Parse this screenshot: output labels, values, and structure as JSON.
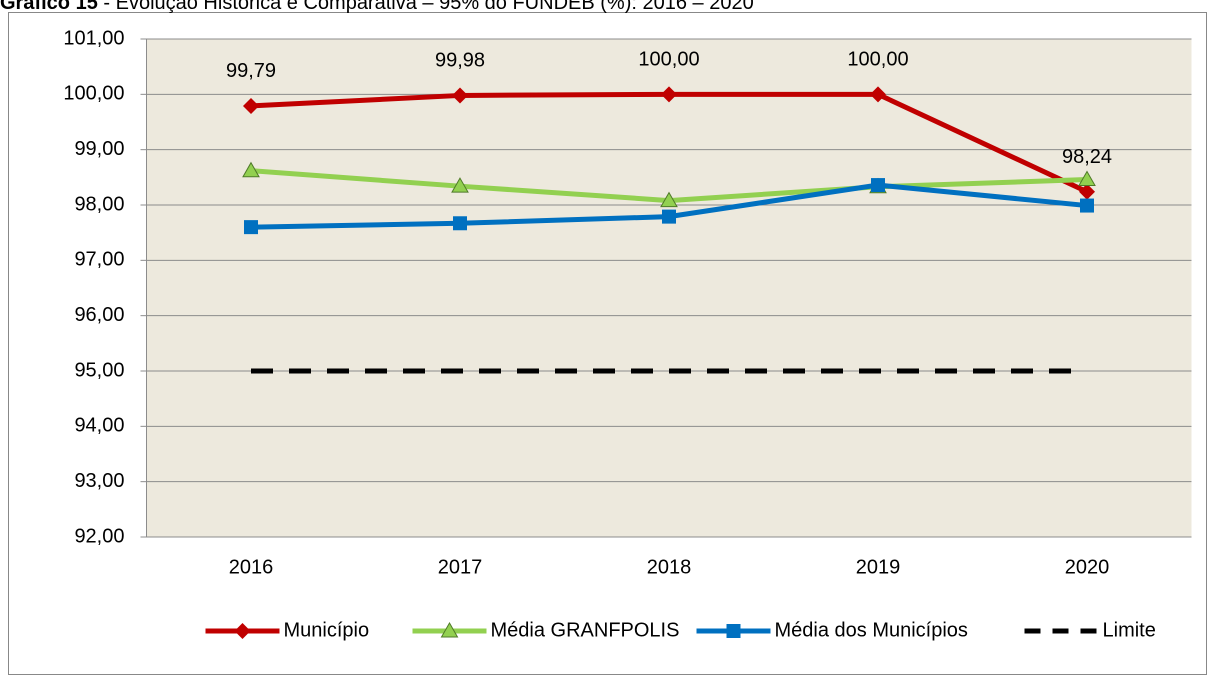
{
  "chart_data": {
    "type": "line",
    "title_label": "Gráfico 15",
    "title": " - Evolução Histórica e Comparativa – 95% do FUNDEB (%): 2016 – 2020",
    "categories": [
      "2016",
      "2017",
      "2018",
      "2019",
      "2020"
    ],
    "series": [
      {
        "name": "Município",
        "color": "#c00000",
        "marker": "diamond",
        "values": [
          99.79,
          99.98,
          100.0,
          100.0,
          98.24
        ],
        "value_labels": [
          "99,79",
          "99,98",
          "100,00",
          "100,00",
          "98,24"
        ]
      },
      {
        "name": "Média GRANFPOLIS",
        "color": "#92d050",
        "marker": "triangle",
        "values": [
          98.62,
          98.34,
          98.08,
          98.33,
          98.46
        ]
      },
      {
        "name": "Média dos Municípios",
        "color": "#0070c0",
        "marker": "square",
        "values": [
          97.6,
          97.67,
          97.79,
          98.36,
          97.99
        ]
      },
      {
        "name": "Limite",
        "color": "#000000",
        "dashed": true,
        "values": [
          95,
          95,
          95,
          95,
          95
        ]
      }
    ],
    "ylim": [
      92,
      101
    ],
    "yticks": [
      {
        "value": 92,
        "label": "92,00"
      },
      {
        "value": 93,
        "label": "93,00"
      },
      {
        "value": 94,
        "label": "94,00"
      },
      {
        "value": 95,
        "label": "95,00"
      },
      {
        "value": 96,
        "label": "96,00"
      },
      {
        "value": 97,
        "label": "97,00"
      },
      {
        "value": 98,
        "label": "98,00"
      },
      {
        "value": 99,
        "label": "99,00"
      },
      {
        "value": 100,
        "label": "100,00"
      },
      {
        "value": 101,
        "label": "101,00"
      }
    ],
    "grid": true,
    "legend": "bottom"
  }
}
